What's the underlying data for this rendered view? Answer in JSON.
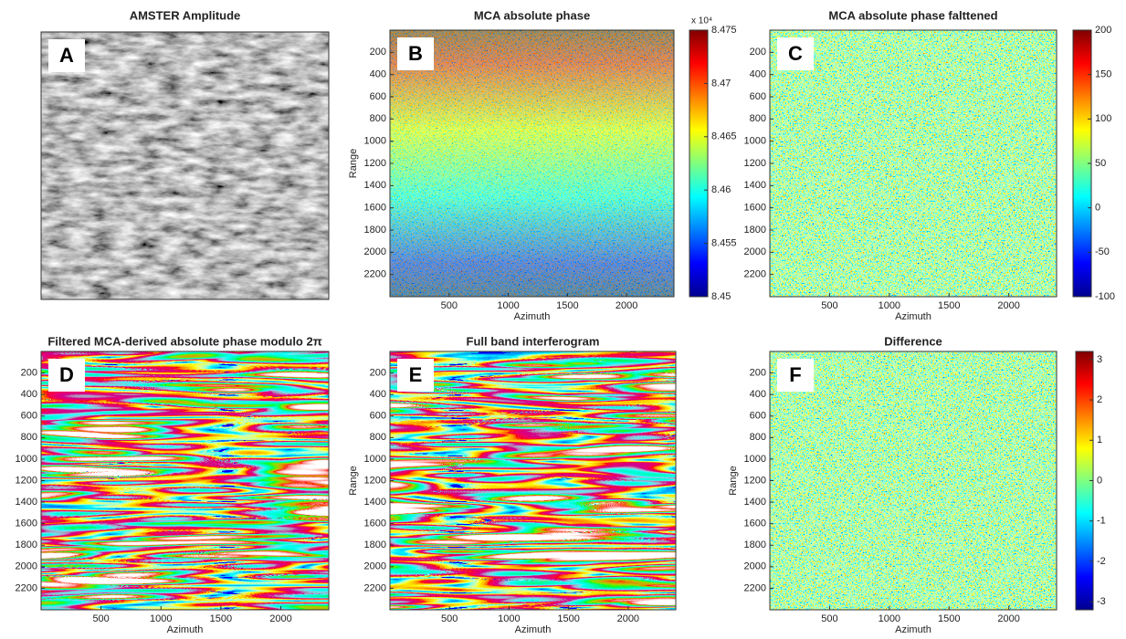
{
  "panels": [
    {
      "letter": "A",
      "title": "AMSTER Amplitude"
    },
    {
      "letter": "B",
      "title": "MCA absolute phase",
      "xlabel": "Azimuth",
      "ylabel": "Range",
      "xlim": [
        0,
        2400
      ],
      "ylim": [
        0,
        2400
      ],
      "xticks": [
        500,
        1000,
        1500,
        2000
      ],
      "yticks": [
        200,
        400,
        600,
        800,
        1000,
        1200,
        1400,
        1600,
        1800,
        2000,
        2200
      ],
      "colorbar": {
        "lim": [
          8.45,
          8.475
        ],
        "ticks": [
          8.45,
          8.455,
          8.46,
          8.465,
          8.47,
          8.475
        ],
        "multiplier": "x 10⁴"
      }
    },
    {
      "letter": "C",
      "title": "MCA absolute phase falttened",
      "xlabel": "Azimuth",
      "xlim": [
        0,
        2400
      ],
      "ylim": [
        0,
        2400
      ],
      "xticks": [
        500,
        1000,
        1500,
        2000
      ],
      "yticks": [
        200,
        400,
        600,
        800,
        1000,
        1200,
        1400,
        1600,
        1800,
        2000,
        2200
      ],
      "colorbar": {
        "lim": [
          -100,
          200
        ],
        "ticks": [
          -100,
          -50,
          0,
          50,
          100,
          150,
          200
        ]
      }
    },
    {
      "letter": "D",
      "title": "Filtered MCA-derived absolute phase modulo 2π",
      "xlabel": "Azimuth",
      "xlim": [
        0,
        2400
      ],
      "ylim": [
        0,
        2400
      ],
      "xticks": [
        500,
        1000,
        1500,
        2000
      ],
      "yticks": [
        200,
        400,
        600,
        800,
        1000,
        1200,
        1400,
        1600,
        1800,
        2000,
        2200
      ]
    },
    {
      "letter": "E",
      "title": "Full band interferogram",
      "xlabel": "Azimuth",
      "ylabel": "Range",
      "xlim": [
        0,
        2400
      ],
      "ylim": [
        0,
        2400
      ],
      "xticks": [
        500,
        1000,
        1500,
        2000
      ],
      "yticks": [
        200,
        400,
        600,
        800,
        1000,
        1200,
        1400,
        1600,
        1800,
        2000,
        2200
      ]
    },
    {
      "letter": "F",
      "title": "Difference",
      "xlabel": "Azimuth",
      "ylabel": "Range",
      "xlim": [
        0,
        2400
      ],
      "ylim": [
        0,
        2400
      ],
      "xticks": [
        500,
        1000,
        1500,
        2000
      ],
      "yticks": [
        200,
        400,
        600,
        800,
        1000,
        1200,
        1400,
        1600,
        1800,
        2000,
        2200
      ],
      "colorbar": {
        "lim": [
          -3.2,
          3.2
        ],
        "ticks": [
          -3,
          -2,
          -1,
          0,
          1,
          2,
          3
        ]
      }
    }
  ]
}
